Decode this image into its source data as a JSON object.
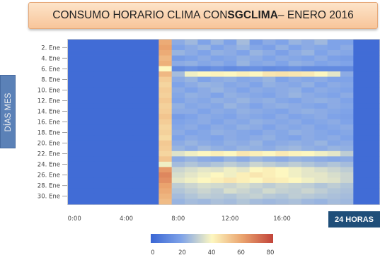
{
  "title": {
    "prefix": "CONSUMO HORARIO CLIMA CON ",
    "bold": "SGCLIMA",
    "suffix": "– ENERO 2016"
  },
  "ylabel": "DÍAS MES",
  "hours_label": "24 HORAS",
  "chart_data": {
    "type": "heatmap",
    "title": "CONSUMO HORARIO CLIMA CON SGCLIMA– ENERO 2016",
    "ylabel": "DÍAS MES",
    "xlabel": "24 HORAS",
    "y_ticks": [
      "2. Ene",
      "4. Ene",
      "6. Ene",
      "8. Ene",
      "10. Ene",
      "12. Ene",
      "14. Ene",
      "16. Ene",
      "18. Ene",
      "20. Ene",
      "22. Ene",
      "24. Ene",
      "26. Ene",
      "28. Ene",
      "30. Ene"
    ],
    "x_ticks": [
      "0:00",
      "4:00",
      "8:00",
      "12:00",
      "16:00"
    ],
    "xlim": [
      0,
      24
    ],
    "days": 31,
    "colorscale": {
      "min": 0,
      "max": 80,
      "ticks": [
        "0",
        "20",
        "40",
        "60",
        "80"
      ],
      "colors": [
        "#3a66d4",
        "#7fa3e8",
        "#fdf7c0",
        "#eaa36e",
        "#c2443a"
      ]
    },
    "values": [
      [
        2,
        2,
        2,
        2,
        2,
        2,
        2,
        58,
        22,
        25,
        20,
        24,
        20,
        26,
        18,
        22,
        20,
        24,
        22,
        25,
        20,
        20,
        2,
        2
      ],
      [
        2,
        2,
        2,
        2,
        2,
        2,
        2,
        60,
        20,
        22,
        24,
        20,
        22,
        24,
        21,
        19,
        23,
        20,
        22,
        21,
        20,
        22,
        2,
        2
      ],
      [
        2,
        2,
        2,
        2,
        2,
        2,
        2,
        58,
        24,
        22,
        20,
        23,
        22,
        20,
        24,
        22,
        19,
        22,
        24,
        20,
        22,
        21,
        2,
        2
      ],
      [
        2,
        2,
        2,
        2,
        2,
        2,
        2,
        55,
        18,
        20,
        22,
        20,
        21,
        23,
        22,
        20,
        22,
        21,
        20,
        22,
        19,
        18,
        2,
        2
      ],
      [
        2,
        2,
        2,
        2,
        2,
        2,
        2,
        57,
        22,
        23,
        21,
        22,
        20,
        24,
        21,
        22,
        20,
        23,
        22,
        20,
        21,
        20,
        2,
        2
      ],
      [
        2,
        2,
        2,
        2,
        2,
        2,
        2,
        40,
        12,
        14,
        12,
        14,
        12,
        13,
        14,
        12,
        13,
        14,
        12,
        12,
        12,
        12,
        2,
        2
      ],
      [
        2,
        2,
        2,
        2,
        2,
        2,
        2,
        55,
        26,
        38,
        40,
        41,
        40,
        42,
        40,
        44,
        45,
        44,
        43,
        40,
        36,
        22,
        2,
        2
      ],
      [
        2,
        2,
        2,
        2,
        2,
        2,
        2,
        50,
        22,
        24,
        20,
        22,
        23,
        21,
        22,
        24,
        20,
        22,
        21,
        22,
        20,
        20,
        2,
        2
      ],
      [
        2,
        2,
        2,
        2,
        2,
        2,
        2,
        48,
        20,
        22,
        24,
        23,
        21,
        22,
        20,
        23,
        22,
        21,
        23,
        20,
        22,
        21,
        2,
        2
      ],
      [
        2,
        2,
        2,
        2,
        2,
        2,
        2,
        50,
        22,
        20,
        22,
        24,
        22,
        20,
        22,
        21,
        22,
        23,
        20,
        22,
        21,
        20,
        2,
        2
      ],
      [
        2,
        2,
        2,
        2,
        2,
        2,
        2,
        49,
        21,
        23,
        22,
        20,
        23,
        22,
        21,
        20,
        22,
        24,
        22,
        21,
        20,
        22,
        2,
        2
      ],
      [
        2,
        2,
        2,
        2,
        2,
        2,
        2,
        51,
        20,
        22,
        21,
        23,
        22,
        24,
        22,
        23,
        21,
        20,
        22,
        23,
        22,
        20,
        2,
        2
      ],
      [
        2,
        2,
        2,
        2,
        2,
        2,
        2,
        49,
        23,
        21,
        22,
        21,
        24,
        22,
        20,
        22,
        23,
        22,
        21,
        20,
        22,
        21,
        2,
        2
      ],
      [
        2,
        2,
        2,
        2,
        2,
        2,
        2,
        50,
        22,
        22,
        20,
        22,
        21,
        23,
        22,
        21,
        20,
        22,
        23,
        22,
        21,
        20,
        2,
        2
      ],
      [
        2,
        2,
        2,
        2,
        2,
        2,
        2,
        52,
        18,
        20,
        22,
        21,
        20,
        22,
        21,
        20,
        22,
        20,
        21,
        22,
        20,
        19,
        2,
        2
      ],
      [
        2,
        2,
        2,
        2,
        2,
        2,
        2,
        50,
        20,
        21,
        22,
        20,
        22,
        21,
        23,
        22,
        21,
        22,
        20,
        21,
        22,
        20,
        2,
        2
      ],
      [
        2,
        2,
        2,
        2,
        2,
        2,
        2,
        48,
        21,
        22,
        20,
        22,
        21,
        23,
        22,
        20,
        22,
        21,
        22,
        20,
        21,
        22,
        2,
        2
      ],
      [
        2,
        2,
        2,
        2,
        2,
        2,
        2,
        49,
        22,
        20,
        21,
        23,
        22,
        21,
        20,
        22,
        21,
        23,
        22,
        21,
        20,
        21,
        2,
        2
      ],
      [
        2,
        2,
        2,
        2,
        2,
        2,
        2,
        47,
        20,
        22,
        21,
        20,
        22,
        21,
        22,
        23,
        21,
        20,
        22,
        21,
        22,
        20,
        2,
        2
      ],
      [
        2,
        2,
        2,
        2,
        2,
        2,
        2,
        51,
        22,
        24,
        22,
        21,
        23,
        22,
        24,
        21,
        22,
        23,
        22,
        24,
        21,
        22,
        2,
        2
      ],
      [
        2,
        2,
        2,
        2,
        2,
        2,
        2,
        50,
        24,
        22,
        25,
        23,
        22,
        24,
        23,
        22,
        24,
        25,
        23,
        22,
        24,
        23,
        2,
        2
      ],
      [
        2,
        2,
        2,
        2,
        2,
        2,
        2,
        48,
        35,
        38,
        40,
        42,
        40,
        44,
        42,
        40,
        43,
        41,
        40,
        38,
        36,
        30,
        2,
        2
      ],
      [
        2,
        2,
        2,
        2,
        2,
        2,
        2,
        52,
        22,
        24,
        22,
        21,
        24,
        22,
        25,
        23,
        22,
        24,
        23,
        22,
        21,
        22,
        2,
        2
      ],
      [
        2,
        2,
        2,
        2,
        2,
        2,
        2,
        38,
        26,
        28,
        26,
        28,
        30,
        28,
        32,
        30,
        28,
        30,
        28,
        26,
        28,
        26,
        2,
        2
      ],
      [
        2,
        2,
        2,
        2,
        2,
        2,
        2,
        62,
        32,
        34,
        36,
        35,
        38,
        36,
        40,
        42,
        40,
        38,
        36,
        34,
        32,
        30,
        2,
        2
      ],
      [
        2,
        2,
        2,
        2,
        2,
        2,
        2,
        66,
        34,
        36,
        38,
        40,
        38,
        42,
        44,
        42,
        40,
        38,
        36,
        36,
        34,
        32,
        2,
        2
      ],
      [
        2,
        2,
        2,
        2,
        2,
        2,
        2,
        64,
        36,
        38,
        40,
        42,
        44,
        42,
        40,
        43,
        42,
        40,
        38,
        36,
        35,
        32,
        2,
        2
      ],
      [
        2,
        2,
        2,
        2,
        2,
        2,
        2,
        60,
        30,
        32,
        34,
        33,
        32,
        34,
        32,
        30,
        32,
        31,
        30,
        28,
        30,
        28,
        2,
        2
      ],
      [
        2,
        2,
        2,
        2,
        2,
        2,
        2,
        58,
        28,
        30,
        32,
        30,
        34,
        32,
        30,
        33,
        31,
        30,
        32,
        30,
        28,
        27,
        2,
        2
      ],
      [
        2,
        2,
        2,
        2,
        2,
        2,
        2,
        56,
        26,
        28,
        30,
        29,
        28,
        30,
        31,
        29,
        28,
        30,
        29,
        28,
        27,
        26,
        2,
        2
      ],
      [
        2,
        2,
        2,
        2,
        2,
        2,
        2,
        54,
        24,
        26,
        25,
        27,
        26,
        28,
        26,
        25,
        26,
        27,
        25,
        24,
        26,
        25,
        2,
        2
      ]
    ]
  }
}
